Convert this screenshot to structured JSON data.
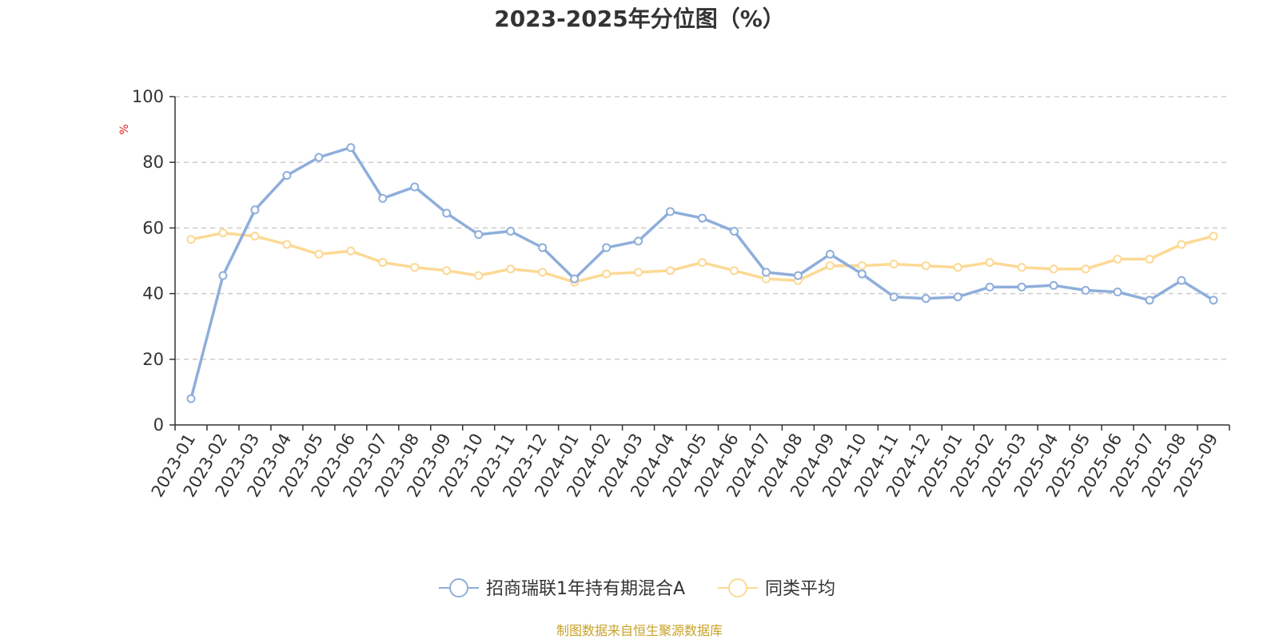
{
  "chart_data": {
    "type": "line",
    "title": "2023-2025年分位图（%）",
    "ylabel": "%",
    "xlabel": "",
    "ylim": [
      0,
      100
    ],
    "yticks": [
      "0",
      "20",
      "40",
      "60",
      "80",
      "100"
    ],
    "grid": "horizontal dashed",
    "legend_position": "bottom-center",
    "categories": [
      "2023-01",
      "2023-02",
      "2023-03",
      "2023-04",
      "2023-05",
      "2023-06",
      "2023-07",
      "2023-08",
      "2023-09",
      "2023-10",
      "2023-11",
      "2023-12",
      "2024-01",
      "2024-02",
      "2024-03",
      "2024-04",
      "2024-05",
      "2024-06",
      "2024-07",
      "2024-08",
      "2024-09",
      "2024-10",
      "2024-11",
      "2024-12",
      "2025-01",
      "2025-02",
      "2025-03",
      "2025-04",
      "2025-05",
      "2025-06",
      "2025-07",
      "2025-08",
      "2025-09"
    ],
    "series": [
      {
        "name": "招商瑞联1年持有期混合A",
        "color": "#8eaedb",
        "values": [
          8,
          45.5,
          65.5,
          76,
          81.5,
          84.5,
          69,
          72.5,
          64.5,
          58,
          59,
          54,
          44.5,
          54,
          56,
          65,
          63,
          59,
          46.5,
          45.5,
          52,
          46,
          39,
          38.5,
          39,
          42,
          42,
          42.5,
          41,
          40.5,
          38,
          44,
          38
        ]
      },
      {
        "name": "同类平均",
        "color": "#fcd994",
        "values": [
          56.5,
          58.5,
          57.5,
          55,
          52,
          53,
          49.5,
          48,
          47,
          45.5,
          47.5,
          46.5,
          43.5,
          46,
          46.5,
          47,
          49.5,
          47,
          44.5,
          44,
          48.5,
          48.5,
          49,
          48.5,
          48,
          49.5,
          48,
          47.5,
          47.5,
          50.5,
          50.5,
          55,
          57.5
        ]
      }
    ],
    "source": "制图数据来自恒生聚源数据库",
    "source_color": "#c9a227",
    "ylabel_color": "#e02020"
  }
}
